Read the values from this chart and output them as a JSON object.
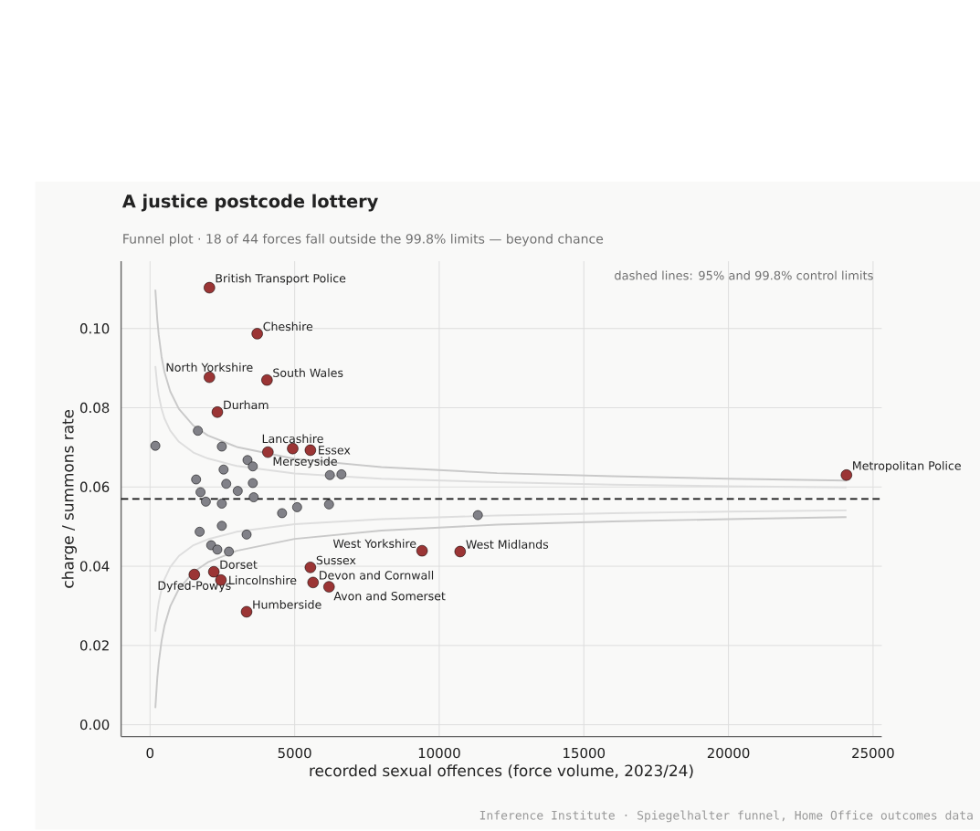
{
  "chart_data": {
    "type": "scatter",
    "title": "A justice postcode lottery",
    "subtitle": "Funnel plot · 18 of 44 forces fall outside the 99.8% limits — beyond chance",
    "xlabel": "recorded sexual offences (force volume, 2023/24)",
    "ylabel": "charge / summons rate",
    "xlim": [
      -1000,
      25300
    ],
    "ylim": [
      -0.003,
      0.117
    ],
    "xticks": [
      0,
      5000,
      10000,
      15000,
      20000,
      25000
    ],
    "yticks": [
      {
        "value": 0,
        "label": "0.00"
      },
      {
        "value": 0.02,
        "label": "0.02"
      },
      {
        "value": 0.04,
        "label": "0.04"
      },
      {
        "value": 0.06,
        "label": "0.06"
      },
      {
        "value": 0.08,
        "label": "0.08"
      },
      {
        "value": 0.1,
        "label": "0.10"
      }
    ],
    "grid": true,
    "ref_lines": [
      {
        "axis": "y",
        "value": 0.057,
        "line_style": "dashed",
        "color": "#111111"
      }
    ],
    "series": [
      {
        "type": "line",
        "marker": "none",
        "color": "#c9c9c9",
        "line_style": "solid",
        "x": [
          184,
          250,
          300,
          400,
          500,
          700,
          1000,
          1500,
          2000,
          3000,
          5000,
          8000,
          12000,
          16000,
          20000,
          24081
        ],
        "values": [
          0.1098,
          0.1023,
          0.0984,
          0.0928,
          0.089,
          0.0841,
          0.0797,
          0.0755,
          0.073,
          0.0701,
          0.0671,
          0.065,
          0.0635,
          0.0627,
          0.0621,
          0.0616
        ]
      },
      {
        "type": "line",
        "marker": "none",
        "color": "#c9c9c9",
        "line_style": "solid",
        "x": [
          184,
          250,
          300,
          400,
          500,
          700,
          1000,
          1500,
          2000,
          3000,
          5000,
          8000,
          12000,
          16000,
          20000,
          24081
        ],
        "values": [
          0.0042,
          0.0117,
          0.0156,
          0.0212,
          0.025,
          0.0299,
          0.0343,
          0.0385,
          0.041,
          0.0439,
          0.0469,
          0.049,
          0.0505,
          0.0513,
          0.0519,
          0.0524
        ]
      },
      {
        "type": "line",
        "marker": "none",
        "color": "#dedede",
        "line_style": "solid",
        "x": [
          184,
          250,
          300,
          400,
          500,
          700,
          1000,
          1500,
          2000,
          3000,
          5000,
          8000,
          12000,
          16000,
          20000,
          24081
        ],
        "values": [
          0.0905,
          0.0857,
          0.0832,
          0.0797,
          0.0773,
          0.0742,
          0.0714,
          0.0687,
          0.0672,
          0.0653,
          0.0634,
          0.0621,
          0.0612,
          0.0606,
          0.0602,
          0.0599
        ]
      },
      {
        "type": "line",
        "marker": "none",
        "color": "#dedede",
        "line_style": "solid",
        "x": [
          184,
          250,
          300,
          400,
          500,
          700,
          1000,
          1500,
          2000,
          3000,
          5000,
          8000,
          12000,
          16000,
          20000,
          24081
        ],
        "values": [
          0.0235,
          0.0283,
          0.0308,
          0.0343,
          0.0367,
          0.0398,
          0.0426,
          0.0453,
          0.0468,
          0.0487,
          0.0506,
          0.0519,
          0.0528,
          0.0534,
          0.0538,
          0.0541
        ]
      },
      {
        "type": "scatter",
        "color": "#818188",
        "x": [
          184,
          1654,
          2482,
          2543,
          3370,
          3554,
          1593,
          2635,
          3554,
          3033,
          1746,
          1930,
          2482,
          3585,
          4565,
          5086,
          6189,
          6219,
          6618,
          11336,
          1716,
          2482,
          3339,
          2114,
          2328,
          2727
        ],
        "values": [
          0.0704,
          0.0742,
          0.0702,
          0.0644,
          0.0668,
          0.0652,
          0.0619,
          0.0608,
          0.061,
          0.059,
          0.0587,
          0.0563,
          0.0558,
          0.0574,
          0.0534,
          0.0549,
          0.0556,
          0.063,
          0.0632,
          0.0529,
          0.0487,
          0.0502,
          0.048,
          0.0453,
          0.0442,
          0.0437
        ]
      },
      {
        "type": "scatter",
        "color": "#9b3535",
        "x": [
          2053,
          3707,
          2053,
          4044,
          2328,
          4075,
          4933,
          5545,
          24081,
          9406,
          10723,
          5545,
          5637,
          6189,
          1532,
          2206,
          2451,
          3339
        ],
        "values": [
          0.1103,
          0.0987,
          0.0877,
          0.087,
          0.0789,
          0.0688,
          0.0697,
          0.0693,
          0.063,
          0.0439,
          0.0437,
          0.0397,
          0.0359,
          0.0348,
          0.0379,
          0.0386,
          0.0365,
          0.0285
        ]
      }
    ],
    "annotations": [
      {
        "text": "British Transport Police",
        "x": 2053,
        "y": 0.1103
      },
      {
        "text": "Cheshire",
        "x": 3707,
        "y": 0.0987
      },
      {
        "text": "North Yorkshire",
        "x": 2053,
        "y": 0.0877
      },
      {
        "text": "South Wales",
        "x": 4044,
        "y": 0.087
      },
      {
        "text": "Durham",
        "x": 2328,
        "y": 0.0789
      },
      {
        "text": "Merseyside",
        "x": 4075,
        "y": 0.0688
      },
      {
        "text": "Lancashire",
        "x": 4933,
        "y": 0.0697
      },
      {
        "text": "Essex",
        "x": 5545,
        "y": 0.0693
      },
      {
        "text": "Metropolitan Police",
        "x": 24081,
        "y": 0.063
      },
      {
        "text": "West Yorkshire",
        "x": 9406,
        "y": 0.0439
      },
      {
        "text": "West Midlands",
        "x": 10723,
        "y": 0.0437
      },
      {
        "text": "Sussex",
        "x": 5545,
        "y": 0.0397
      },
      {
        "text": "Devon and Cornwall",
        "x": 5637,
        "y": 0.0359
      },
      {
        "text": "Avon and Somerset",
        "x": 6189,
        "y": 0.0348
      },
      {
        "text": "Dyfed-Powys",
        "x": 1532,
        "y": 0.0379
      },
      {
        "text": "Dorset",
        "x": 2206,
        "y": 0.0386
      },
      {
        "text": "Lincolnshire",
        "x": 2451,
        "y": 0.0365
      },
      {
        "text": "Humberside",
        "x": 3339,
        "y": 0.0285
      },
      "dashed lines: 95% and 99.8% control limits",
      "Inference Institute · Spiegelhalter funnel, Home Office outcomes data"
    ]
  }
}
